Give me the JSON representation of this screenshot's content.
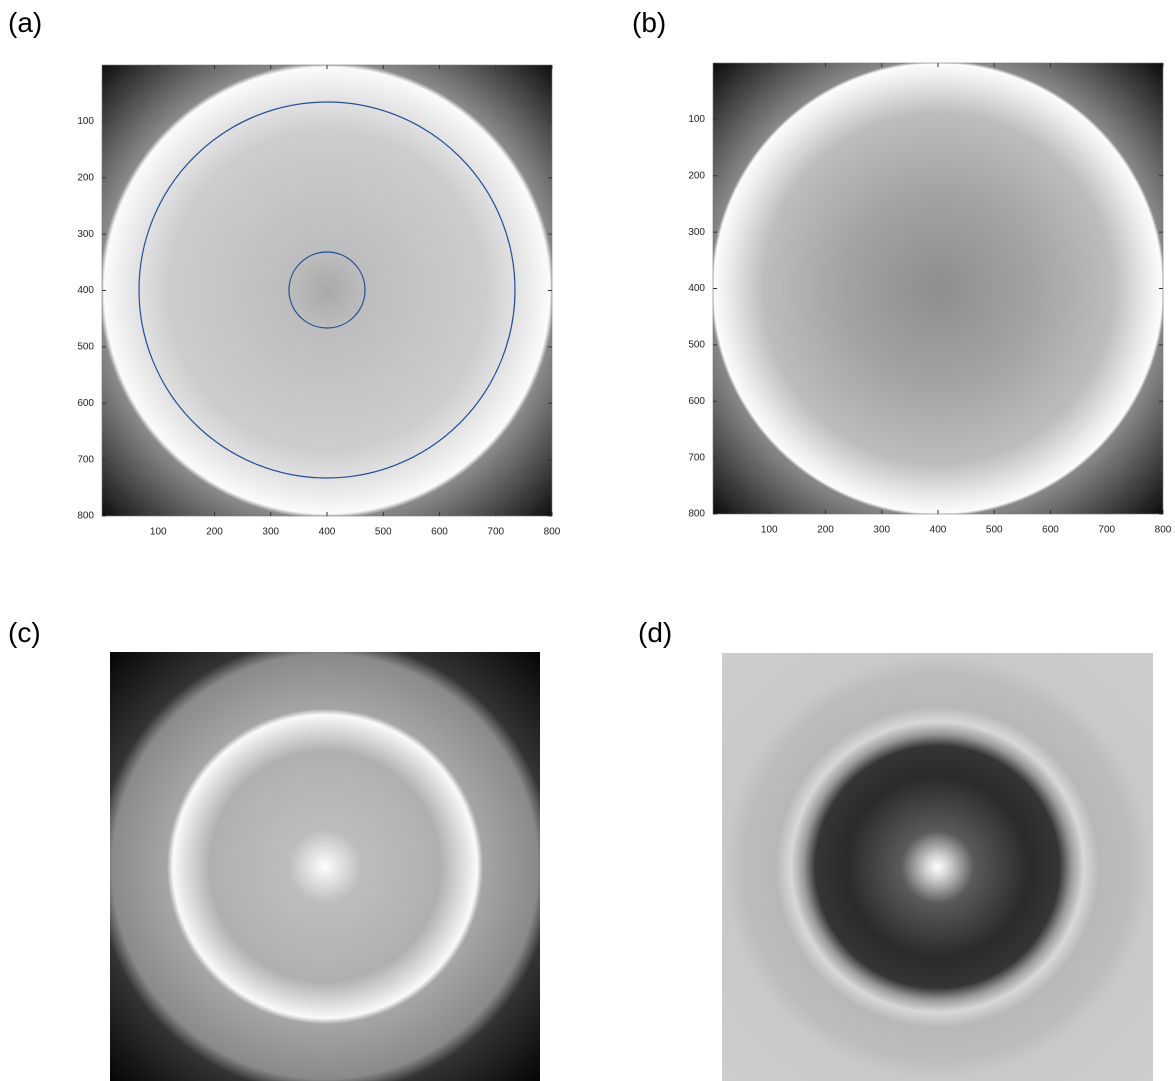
{
  "panels": [
    {
      "label": "(a)",
      "xlim": [
        0,
        800
      ],
      "ylim": [
        0,
        800
      ],
      "xticks": [
        100,
        200,
        300,
        400,
        500,
        600,
        700,
        800
      ],
      "yticks": [
        100,
        200,
        300,
        400,
        500,
        600,
        700,
        800
      ]
    },
    {
      "label": "(b)",
      "xlim": [
        0,
        800
      ],
      "ylim": [
        0,
        800
      ],
      "xticks": [
        100,
        200,
        300,
        400,
        500,
        600,
        700,
        800
      ],
      "yticks": [
        100,
        200,
        300,
        400,
        500,
        600,
        700,
        800
      ]
    },
    {
      "label": "(c)"
    },
    {
      "label": "(d)"
    }
  ]
}
